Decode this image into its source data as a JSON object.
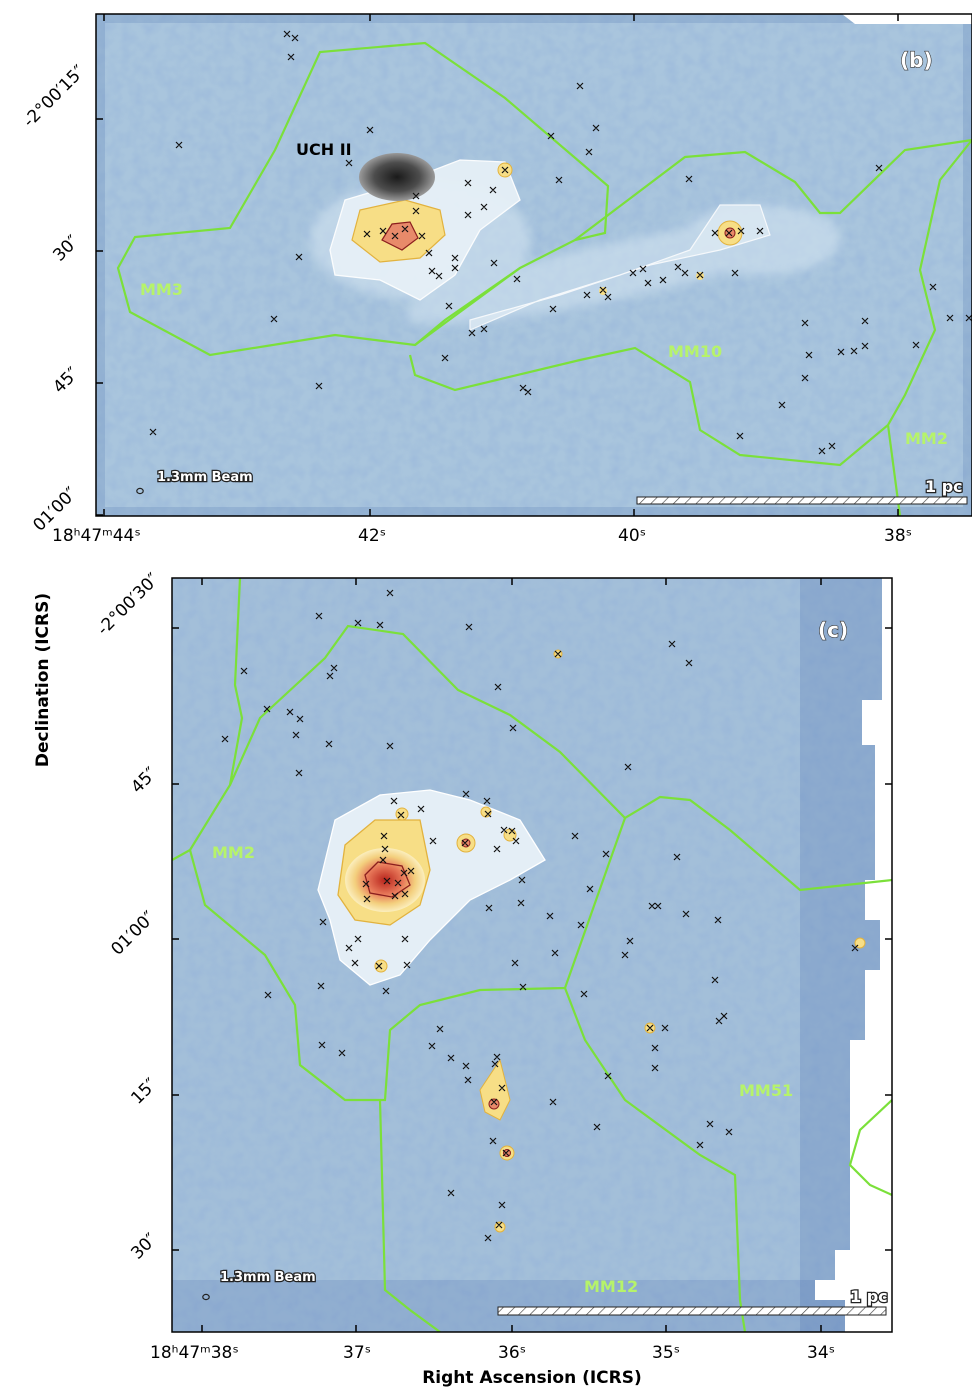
{
  "panel_b": {
    "tag": "(b)",
    "ra_ticks": [
      "18ʰ47ᵐ44ˢ",
      "42ˢ",
      "40ˢ",
      "38ˢ"
    ],
    "dec_ticks": [
      "-2°00′15″",
      "30″",
      "45″",
      "01′00″"
    ],
    "region_labels": [
      "MM3",
      "MM10",
      "MM2"
    ],
    "source_label": "UCH II",
    "beam_label": "1.3mm Beam",
    "scale_label": "1 pc"
  },
  "panel_c": {
    "tag": "(c)",
    "ra_ticks": [
      "18ʰ47ᵐ38ˢ",
      "37ˢ",
      "36ˢ",
      "35ˢ",
      "34ˢ"
    ],
    "dec_ticks": [
      "-2°00′30″",
      "45″",
      "01′00″",
      "15″",
      "30″"
    ],
    "region_labels": [
      "MM2",
      "MM51",
      "MM12"
    ],
    "beam_label": "1.3mm Beam",
    "scale_label": "1 pc"
  },
  "axes": {
    "xlabel": "Right Ascension (ICRS)",
    "ylabel": "Declination (ICRS)"
  },
  "colors": {
    "map_base": "#a8c4dc",
    "map_dark": "#5a82b4",
    "region_outline": "#7be03a",
    "contour_white": "#ffffff",
    "emission_yellow": "#f5d26a",
    "emission_red": "#c0392b",
    "uchii": "#4a4a4a"
  }
}
